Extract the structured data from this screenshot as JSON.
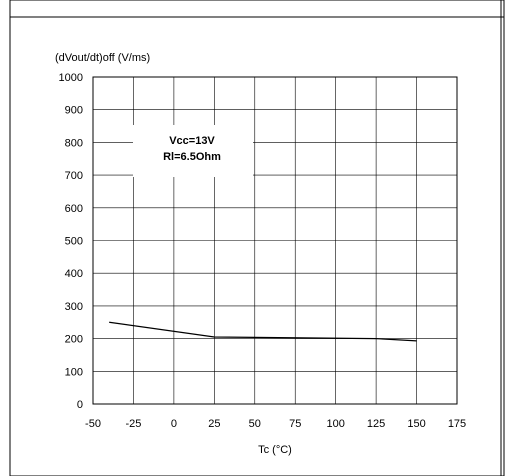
{
  "chart_data": {
    "type": "line",
    "ylabel": "(dVout/dt)off (V/ms)",
    "xlabel": "Tc (°C)",
    "annotation": [
      "Vcc=13V",
      "Rl=6.5Ohm"
    ],
    "xlim": [
      -50,
      175
    ],
    "ylim": [
      0,
      1000
    ],
    "xticks": [
      -50,
      -25,
      0,
      25,
      50,
      75,
      100,
      125,
      150,
      175
    ],
    "yticks": [
      0,
      100,
      200,
      300,
      400,
      500,
      600,
      700,
      800,
      900,
      1000
    ],
    "grid": true,
    "series": [
      {
        "x": [
          -40,
          25,
          125,
          150
        ],
        "y": [
          250,
          205,
          200,
          193
        ]
      }
    ],
    "line_color": "#000000"
  }
}
